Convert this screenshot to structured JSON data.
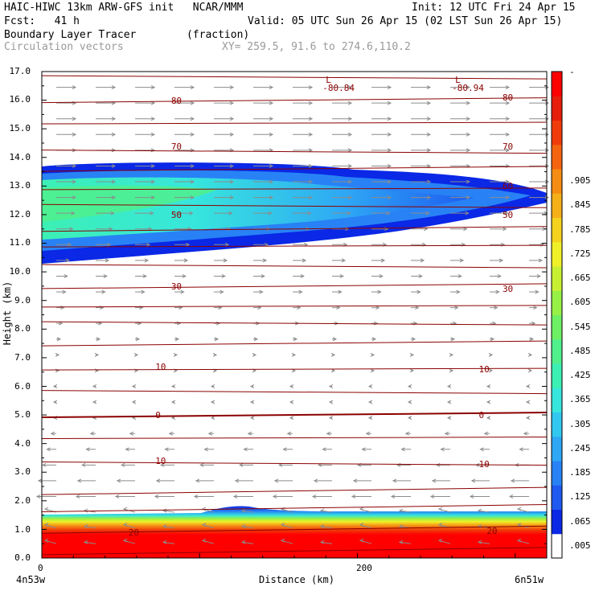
{
  "header": {
    "title_left": "HAIC-HIWC 13km ARW-GFS init   NCAR/MMM",
    "init": "Init: 12 UTC Fri 24 Apr 15",
    "fcst": "Fcst:   41 h",
    "valid": "Valid: 05 UTC Sun 26 Apr 15 (02 LST Sun 26 Apr 15)",
    "field1": "Boundary Layer Tracer        (fraction)",
    "field2": "Circulation vectors",
    "xy": "XY= 259.5, 91.6 to 274.6,110.2"
  },
  "colors": {
    "contour": "#8b0000",
    "vector": "#8c8c8c",
    "colorbar": [
      "#ffffff",
      "#0a28e6",
      "#1e5af0",
      "#2882f5",
      "#2ea8f5",
      "#32c8f0",
      "#37e6dc",
      "#3cf0b4",
      "#50f08c",
      "#6ef064",
      "#96f046",
      "#c8f032",
      "#f0f028",
      "#f5d21e",
      "#f5af19",
      "#f58c14",
      "#f5640f",
      "#f03c0a",
      "#e61e0a",
      "#ff0000"
    ]
  },
  "chart_data": {
    "type": "heatmap",
    "title": "Boundary Layer Tracer",
    "units": "(fraction)",
    "overlay": "Circulation vectors",
    "ylabel": "Height (km)",
    "xlabel": "Distance (km)",
    "ylim": [
      0,
      17
    ],
    "yticks": [
      "0.0",
      "1.0",
      "2.0",
      "3.0",
      "4.0",
      "5.0",
      "6.0",
      "7.0",
      "8.0",
      "9.0",
      "10.0",
      "11.0",
      "12.0",
      "13.0",
      "14.0",
      "15.0",
      "16.0",
      "17.0"
    ],
    "xlim": [
      0,
      320
    ],
    "xticks": [
      {
        "value": 0,
        "label": "0"
      },
      {
        "value": 200,
        "label": "200"
      }
    ],
    "x_endpoints": [
      "4n53w",
      "6n51w"
    ],
    "colorbar_ticks": [
      ".005",
      ".065",
      ".125",
      ".185",
      ".245",
      ".305",
      ".365",
      ".425",
      ".485",
      ".545",
      ".605",
      ".665",
      ".725",
      ".785",
      ".845",
      ".905"
    ],
    "colorbar_top_label": "-",
    "contour_labels": [
      {
        "text": "80",
        "x": 85,
        "y": 16.0
      },
      {
        "text": "80",
        "x": 295,
        "y": 16.1
      },
      {
        "text": "70",
        "x": 85,
        "y": 14.4
      },
      {
        "text": "70",
        "x": 295,
        "y": 14.4
      },
      {
        "text": "60",
        "x": 295,
        "y": 13.0
      },
      {
        "text": "50",
        "x": 85,
        "y": 12.0
      },
      {
        "text": "50",
        "x": 295,
        "y": 12.0
      },
      {
        "text": "30",
        "x": 85,
        "y": 9.5
      },
      {
        "text": "30",
        "x": 295,
        "y": 9.4
      },
      {
        "text": "10",
        "x": 75,
        "y": 6.7
      },
      {
        "text": "10",
        "x": 280,
        "y": 6.6
      },
      {
        "text": "0",
        "x": 75,
        "y": 5.0
      },
      {
        "text": "0",
        "x": 280,
        "y": 5.0
      },
      {
        "text": "10",
        "x": 75,
        "y": 3.4
      },
      {
        "text": "10",
        "x": 280,
        "y": 3.3
      },
      {
        "text": "20",
        "x": 58,
        "y": 0.9
      },
      {
        "text": "20",
        "x": 285,
        "y": 0.95
      }
    ],
    "lows": [
      {
        "label": "L",
        "value": "-80.84",
        "x": 180,
        "y": 16.8
      },
      {
        "label": "L",
        "value": "-80.94",
        "x": 262,
        "y": 16.8
      }
    ],
    "tracer_regions": [
      {
        "name": "upper-plume-outer",
        "value": 0.035
      },
      {
        "name": "upper-plume-core",
        "value": 0.3
      },
      {
        "name": "boundary-layer-top",
        "value": 0.1
      },
      {
        "name": "boundary-layer-core",
        "value": 0.95
      }
    ]
  }
}
